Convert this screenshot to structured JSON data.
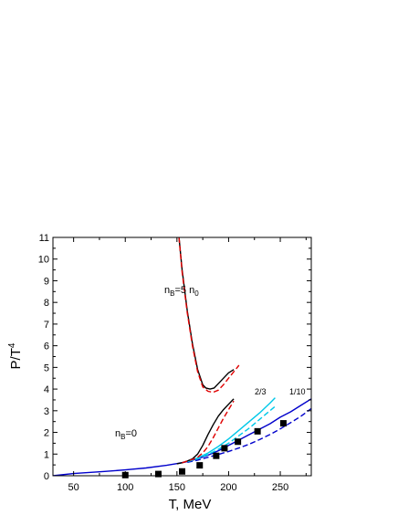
{
  "chart_data": {
    "type": "line",
    "xlabel": "T, MeV",
    "ylabel_main": "P/T",
    "ylabel_sup": "4",
    "xlim": [
      30,
      280
    ],
    "ylim": [
      0,
      11
    ],
    "xticks": [
      50,
      100,
      150,
      200,
      250
    ],
    "yticks": [
      0,
      1,
      2,
      3,
      4,
      5,
      6,
      7,
      8,
      9,
      10,
      11
    ],
    "grid": false,
    "colors": {
      "black": "#000000",
      "red": "#e00000",
      "blue": "#0000cc",
      "cyan": "#00c8e8"
    },
    "annotations": {
      "nb5": {
        "pre": "n",
        "sub1": "B",
        "mid": "=5 n",
        "sub2": "0"
      },
      "nb0": {
        "pre": "n",
        "sub1": "B",
        "mid": "=0"
      },
      "two_thirds": "2/3",
      "one_tenth": "1/10"
    },
    "series": [
      {
        "style": "solid",
        "color": "black",
        "x": [
          152,
          155,
          160,
          165,
          170,
          175,
          178,
          182,
          186,
          190,
          195,
          200,
          205
        ],
        "y": [
          11,
          9.5,
          7.6,
          6.1,
          4.9,
          4.2,
          4.05,
          4.0,
          4.05,
          4.25,
          4.5,
          4.75,
          4.9
        ]
      },
      {
        "style": "dashed",
        "color": "red",
        "x": [
          152,
          155,
          160,
          165,
          170,
          175,
          180,
          185,
          190,
          195,
          200,
          205,
          210
        ],
        "y": [
          11,
          9.4,
          7.5,
          6.0,
          4.8,
          4.1,
          3.9,
          3.85,
          3.95,
          4.2,
          4.5,
          4.8,
          5.1
        ]
      },
      {
        "style": "solid",
        "color": "blue",
        "x": [
          30,
          50,
          80,
          100,
          120,
          140,
          150,
          160,
          170,
          180,
          190,
          200,
          210,
          220,
          230,
          240,
          250,
          260,
          270,
          280
        ],
        "y": [
          0.0,
          0.1,
          0.2,
          0.27,
          0.36,
          0.48,
          0.56,
          0.65,
          0.78,
          0.95,
          1.15,
          1.4,
          1.65,
          1.9,
          2.15,
          2.4,
          2.7,
          2.95,
          3.25,
          3.55
        ]
      },
      {
        "style": "dashed",
        "color": "blue",
        "x": [
          160,
          170,
          180,
          190,
          200,
          210,
          220,
          230,
          240,
          250,
          260,
          270,
          280
        ],
        "y": [
          0.62,
          0.72,
          0.85,
          0.98,
          1.12,
          1.28,
          1.46,
          1.67,
          1.9,
          2.16,
          2.45,
          2.75,
          3.1
        ]
      },
      {
        "style": "solid",
        "color": "cyan",
        "x": [
          160,
          170,
          180,
          190,
          200,
          210,
          220,
          230,
          240,
          245
        ],
        "y": [
          0.65,
          0.82,
          1.05,
          1.35,
          1.7,
          2.1,
          2.5,
          2.9,
          3.35,
          3.6
        ]
      },
      {
        "style": "dashed",
        "color": "cyan",
        "x": [
          160,
          170,
          180,
          190,
          200,
          210,
          220,
          230,
          240,
          245
        ],
        "y": [
          0.65,
          0.78,
          0.98,
          1.22,
          1.5,
          1.85,
          2.2,
          2.6,
          3.0,
          3.2
        ]
      },
      {
        "style": "solid",
        "color": "black",
        "x": [
          150,
          155,
          160,
          165,
          170,
          175,
          180,
          185,
          190,
          195,
          200,
          205
        ],
        "y": [
          0.55,
          0.6,
          0.68,
          0.78,
          1.0,
          1.4,
          1.9,
          2.35,
          2.75,
          3.05,
          3.3,
          3.55
        ]
      },
      {
        "style": "dashed",
        "color": "red",
        "x": [
          155,
          160,
          165,
          170,
          175,
          180,
          185,
          190,
          195,
          200,
          205
        ],
        "y": [
          0.6,
          0.68,
          0.75,
          0.85,
          1.05,
          1.35,
          1.75,
          2.2,
          2.65,
          3.05,
          3.45
        ]
      }
    ],
    "points": {
      "color": "black",
      "x": [
        100,
        132,
        155,
        172,
        188,
        196,
        209,
        228,
        253
      ],
      "y": [
        0.03,
        0.08,
        0.2,
        0.48,
        0.92,
        1.27,
        1.57,
        2.05,
        2.42
      ]
    }
  }
}
